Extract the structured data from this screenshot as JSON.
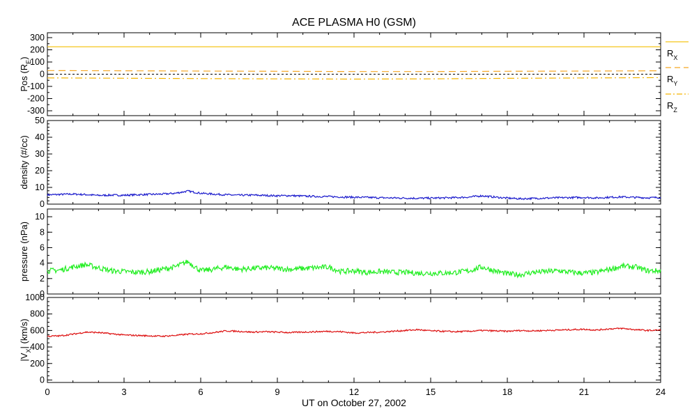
{
  "chart_data": {
    "type": "line",
    "title": "ACE PLASMA H0 (GSM)",
    "xlabel": "UT on October 27, 2002",
    "xlim": [
      0,
      24
    ],
    "x_ticks": [
      "0",
      "3",
      "6",
      "9",
      "12",
      "15",
      "18",
      "21",
      "24"
    ],
    "panels": [
      {
        "id": "pos",
        "ylabel": "Pos (R",
        "ylabel_sub": "E",
        "ylabel_end": ")",
        "ylim": [
          -340,
          340
        ],
        "y_ticks": [
          "300",
          "200",
          "100",
          "0",
          "-100",
          "-200",
          "-300"
        ],
        "zero_line": true,
        "series": [
          {
            "name": "R",
            "sub": "X",
            "color": "#f5c518",
            "dash": "",
            "x": [
              0,
              6,
              12,
              18,
              24
            ],
            "values": [
              225,
              225,
              225,
              225,
              225
            ]
          },
          {
            "name": "R",
            "sub": "Y",
            "color": "#f5a623",
            "dash": "10,6",
            "x": [
              0,
              3,
              6,
              9,
              12,
              15,
              18,
              21,
              24
            ],
            "values": [
              30,
              28,
              26,
              24,
              22,
              22,
              24,
              26,
              28
            ]
          },
          {
            "name": "R",
            "sub": "Z",
            "color": "#f5b400",
            "dash": "10,4,2,4",
            "x": [
              0,
              3,
              6,
              9,
              12,
              15,
              18,
              21,
              24
            ],
            "values": [
              -30,
              -33,
              -36,
              -38,
              -40,
              -38,
              -34,
              -31,
              -28
            ]
          }
        ]
      },
      {
        "id": "density",
        "ylabel": "density (#/cc)",
        "ylim": [
          0,
          50
        ],
        "y_ticks": [
          "50",
          "40",
          "30",
          "20",
          "10",
          "0"
        ],
        "series": [
          {
            "name": "",
            "color": "#1a1acc",
            "x": [
              0,
              0.5,
              1,
              1.5,
              2,
              2.5,
              3,
              3.5,
              4,
              4.5,
              5,
              5.5,
              6,
              6.5,
              7,
              7.5,
              8,
              8.5,
              9,
              9.5,
              10,
              10.5,
              11,
              11.5,
              12,
              12.5,
              13,
              13.5,
              14,
              14.5,
              15,
              15.5,
              16,
              16.5,
              17,
              17.5,
              18,
              18.5,
              19,
              19.5,
              20,
              20.5,
              21,
              21.5,
              22,
              22.5,
              23,
              23.5,
              24
            ],
            "values": [
              5.5,
              5.8,
              6.0,
              5.7,
              5.2,
              5.4,
              5.3,
              5.6,
              5.8,
              6.0,
              6.5,
              7.8,
              6.5,
              6.0,
              5.6,
              5.3,
              5.4,
              5.2,
              5.0,
              5.1,
              4.8,
              4.6,
              4.5,
              4.3,
              4.1,
              4.0,
              3.8,
              3.7,
              3.6,
              3.5,
              3.6,
              3.7,
              3.9,
              4.2,
              5.0,
              4.2,
              3.6,
              3.2,
              3.4,
              3.6,
              3.8,
              3.9,
              4.0,
              3.7,
              4.1,
              4.3,
              4.0,
              3.8,
              4.0
            ]
          }
        ]
      },
      {
        "id": "pressure",
        "ylabel": "pressure (nPa)",
        "ylim": [
          0,
          11
        ],
        "y_ticks": [
          "10",
          "8",
          "6",
          "4",
          "2",
          "0"
        ],
        "series": [
          {
            "name": "",
            "color": "#22ee22",
            "x": [
              0,
              0.5,
              1,
              1.5,
              2,
              2.5,
              3,
              3.5,
              4,
              4.5,
              5,
              5.5,
              6,
              6.5,
              7,
              7.5,
              8,
              8.5,
              9,
              9.5,
              10,
              10.5,
              11,
              11.5,
              12,
              12.5,
              13,
              13.5,
              14,
              14.5,
              15,
              15.5,
              16,
              16.5,
              17,
              17.5,
              18,
              18.5,
              19,
              19.5,
              20,
              20.5,
              21,
              21.5,
              22,
              22.5,
              23,
              23.5,
              24
            ],
            "values": [
              3.0,
              3.1,
              3.5,
              3.8,
              3.4,
              3.0,
              2.9,
              2.8,
              2.9,
              3.2,
              3.5,
              4.2,
              3.0,
              3.2,
              3.5,
              3.2,
              3.3,
              3.4,
              3.3,
              3.2,
              3.3,
              3.4,
              3.5,
              2.9,
              3.0,
              2.8,
              2.9,
              2.8,
              2.8,
              2.7,
              2.7,
              2.7,
              2.8,
              3.0,
              3.5,
              3.0,
              2.6,
              2.5,
              2.8,
              2.9,
              3.0,
              2.8,
              2.7,
              2.8,
              3.2,
              3.6,
              3.5,
              3.0,
              3.0
            ]
          }
        ]
      },
      {
        "id": "vx",
        "ylabel": "|V",
        "ylabel_sub": "X",
        "ylabel_end": "| (km/s)",
        "ylim": [
          -30,
          1000
        ],
        "y_ticks": [
          "1000",
          "800",
          "600",
          "400",
          "200",
          "0"
        ],
        "series": [
          {
            "name": "",
            "color": "#dd1111",
            "x": [
              0,
              0.5,
              1,
              1.5,
              2,
              2.5,
              3,
              3.5,
              4,
              4.5,
              5,
              5.5,
              6,
              6.5,
              7,
              7.5,
              8,
              8.5,
              9,
              9.5,
              10,
              10.5,
              11,
              11.5,
              12,
              12.5,
              13,
              13.5,
              14,
              14.5,
              15,
              15.5,
              16,
              16.5,
              17,
              17.5,
              18,
              18.5,
              19,
              19.5,
              20,
              20.5,
              21,
              21.5,
              22,
              22.5,
              23,
              23.5,
              24
            ],
            "values": [
              530,
              535,
              555,
              580,
              575,
              560,
              545,
              540,
              535,
              530,
              540,
              555,
              560,
              575,
              595,
              590,
              580,
              585,
              580,
              575,
              580,
              585,
              590,
              585,
              570,
              575,
              580,
              590,
              600,
              610,
              595,
              590,
              585,
              590,
              600,
              595,
              590,
              600,
              595,
              600,
              605,
              610,
              615,
              605,
              620,
              625,
              610,
              600,
              605
            ]
          }
        ]
      }
    ]
  }
}
